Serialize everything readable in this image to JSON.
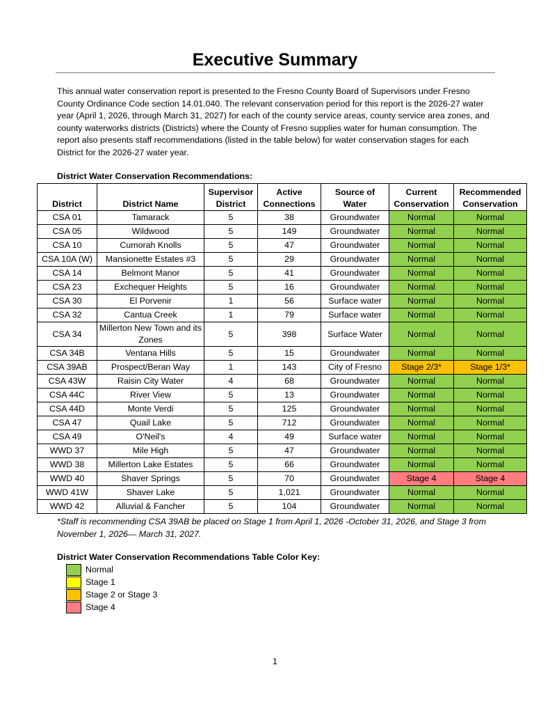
{
  "title": "Executive Summary",
  "intro": "This annual water conservation report is presented to the Fresno County Board of Supervisors under Fresno County Ordinance Code section 14.01.040. The relevant conservation period for this report is the 2026-27 water year (April 1, 2026, through March 31, 2027) for each of the county service areas, county service area zones, and county waterworks districts (Districts) where the County of Fresno supplies water for human consumption. The report also presents staff recommendations (listed in the table below) for water conservation stages for each District for the 2026-27 water year.",
  "table_caption": "District Water Conservation Recommendations:",
  "table": {
    "headers": [
      "District",
      "District Name",
      "Supervisor District",
      "Active Connections",
      "Source of Water",
      "Current Conservation",
      "Recommended Conservation"
    ],
    "rows": [
      {
        "cells": [
          "CSA 01",
          "Tamarack",
          "5",
          "38",
          "Groundwater",
          "Normal",
          "Normal"
        ],
        "colors": [
          "#92d050",
          "#92d050"
        ]
      },
      {
        "cells": [
          "CSA 05",
          "Wildwood",
          "5",
          "149",
          "Groundwater",
          "Normal",
          "Normal"
        ],
        "colors": [
          "#92d050",
          "#92d050"
        ]
      },
      {
        "cells": [
          "CSA 10",
          "Cumorah Knolls",
          "5",
          "47",
          "Groundwater",
          "Normal",
          "Normal"
        ],
        "colors": [
          "#92d050",
          "#92d050"
        ]
      },
      {
        "cells": [
          "CSA 10A (W)",
          "Mansionette Estates #3",
          "5",
          "29",
          "Groundwater",
          "Normal",
          "Normal"
        ],
        "colors": [
          "#92d050",
          "#92d050"
        ]
      },
      {
        "cells": [
          "CSA 14",
          "Belmont Manor",
          "5",
          "41",
          "Groundwater",
          "Normal",
          "Normal"
        ],
        "colors": [
          "#92d050",
          "#92d050"
        ]
      },
      {
        "cells": [
          "CSA 23",
          "Exchequer Heights",
          "5",
          "16",
          "Groundwater",
          "Normal",
          "Normal"
        ],
        "colors": [
          "#92d050",
          "#92d050"
        ]
      },
      {
        "cells": [
          "CSA 30",
          "El Porvenir",
          "1",
          "56",
          "Surface water",
          "Normal",
          "Normal"
        ],
        "colors": [
          "#92d050",
          "#92d050"
        ]
      },
      {
        "cells": [
          "CSA 32",
          "Cantua Creek",
          "1",
          "79",
          "Surface water",
          "Normal",
          "Normal"
        ],
        "colors": [
          "#92d050",
          "#92d050"
        ]
      },
      {
        "cells": [
          "CSA 34",
          "Millerton New Town and its Zones",
          "5",
          "398",
          "Surface Water",
          "Normal",
          "Normal"
        ],
        "colors": [
          "#92d050",
          "#92d050"
        ]
      },
      {
        "cells": [
          "CSA 34B",
          "Ventana Hills",
          "5",
          "15",
          "Groundwater",
          "Normal",
          "Normal"
        ],
        "colors": [
          "#92d050",
          "#92d050"
        ]
      },
      {
        "cells": [
          "CSA 39AB",
          "Prospect/Beran Way",
          "1",
          "143",
          "City of Fresno",
          "Stage 2/3*",
          "Stage 1/3*"
        ],
        "colors": [
          "#ffc000",
          "#ffc000"
        ]
      },
      {
        "cells": [
          "CSA 43W",
          "Raisin City Water",
          "4",
          "68",
          "Groundwater",
          "Normal",
          "Normal"
        ],
        "colors": [
          "#92d050",
          "#92d050"
        ]
      },
      {
        "cells": [
          "CSA 44C",
          "River View",
          "5",
          "13",
          "Groundwater",
          "Normal",
          "Normal"
        ],
        "colors": [
          "#92d050",
          "#92d050"
        ]
      },
      {
        "cells": [
          "CSA 44D",
          "Monte Verdi",
          "5",
          "125",
          "Groundwater",
          "Normal",
          "Normal"
        ],
        "colors": [
          "#92d050",
          "#92d050"
        ]
      },
      {
        "cells": [
          "CSA 47",
          "Quail Lake",
          "5",
          "712",
          "Groundwater",
          "Normal",
          "Normal"
        ],
        "colors": [
          "#92d050",
          "#92d050"
        ]
      },
      {
        "cells": [
          "CSA 49",
          "O'Neil's",
          "4",
          "49",
          "Surface water",
          "Normal",
          "Normal"
        ],
        "colors": [
          "#92d050",
          "#92d050"
        ]
      },
      {
        "cells": [
          "WWD 37",
          "Mile High",
          "5",
          "47",
          "Groundwater",
          "Normal",
          "Normal"
        ],
        "colors": [
          "#92d050",
          "#92d050"
        ]
      },
      {
        "cells": [
          "WWD 38",
          "Millerton Lake Estates",
          "5",
          "66",
          "Groundwater",
          "Normal",
          "Normal"
        ],
        "colors": [
          "#92d050",
          "#92d050"
        ]
      },
      {
        "cells": [
          "WWD 40",
          "Shaver Springs",
          "5",
          "70",
          "Groundwater",
          "Stage 4",
          "Stage 4"
        ],
        "colors": [
          "#ff7c80",
          "#ff7c80"
        ]
      },
      {
        "cells": [
          "WWD 41W",
          "Shaver Lake",
          "5",
          "1,021",
          "Groundwater",
          "Normal",
          "Normal"
        ],
        "colors": [
          "#92d050",
          "#92d050"
        ]
      },
      {
        "cells": [
          "WWD 42",
          "Alluvial & Fancher",
          "5",
          "104",
          "Groundwater",
          "Normal",
          "Normal"
        ],
        "colors": [
          "#92d050",
          "#92d050"
        ]
      }
    ]
  },
  "footnote": "*Staff is recommending CSA 39AB be placed on Stage 1 from April 1, 2026 -October 31, 2026, and Stage 3 from November 1, 2026— March 31, 2027.",
  "key": {
    "title": "District Water Conservation Recommendations Table Color Key:",
    "items": [
      {
        "label": "Normal",
        "color": "#92d050"
      },
      {
        "label": "Stage 1",
        "color": "#ffff00"
      },
      {
        "label": "Stage 2 or Stage 3",
        "color": "#ffc000"
      },
      {
        "label": "Stage 4",
        "color": "#ff7c80"
      }
    ]
  },
  "page_number": "1"
}
